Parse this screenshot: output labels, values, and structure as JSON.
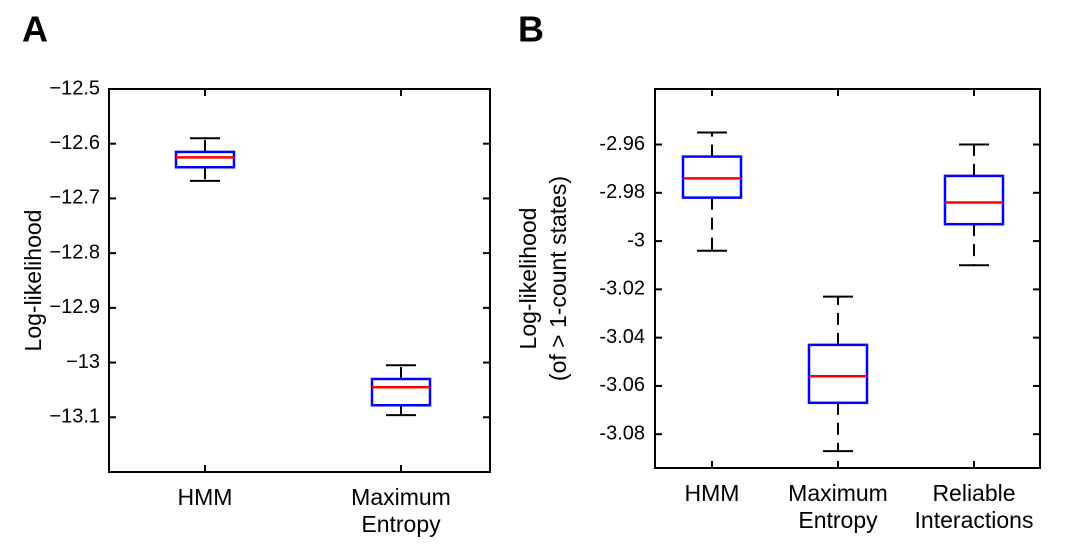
{
  "chart_data": [
    {
      "type": "box",
      "panel": "A",
      "ylabel": [
        "Log-likelihood"
      ],
      "categories": [
        "HMM",
        "Maximum Entropy"
      ],
      "boxes": [
        {
          "whislo": -12.668,
          "q1": -12.643,
          "med": -12.625,
          "q3": -12.615,
          "whishi": -12.59
        },
        {
          "whislo": -13.096,
          "q1": -13.078,
          "med": -13.045,
          "q3": -13.03,
          "whishi": -13.005
        }
      ],
      "box_color": "#0000ff",
      "median_color": "#ff0000",
      "whisker_color": "#000000",
      "ylim": [
        -13.2,
        -12.5
      ],
      "yticks": [
        {
          "value": -12.5,
          "label": "−12.5"
        },
        {
          "value": -12.6,
          "label": "−12.6"
        },
        {
          "value": -12.7,
          "label": "−12.7"
        },
        {
          "value": -12.8,
          "label": "−12.8"
        },
        {
          "value": -12.9,
          "label": "−12.9"
        },
        {
          "value": -13,
          "label": "−13"
        },
        {
          "value": -13.1,
          "label": "−13.1"
        }
      ]
    },
    {
      "type": "box",
      "panel": "B",
      "ylabel": [
        "Log-likelihood",
        "(of  > 1-count states)"
      ],
      "categories": [
        "HMM",
        "Maximum Entropy",
        "Reliable Interactions"
      ],
      "boxes": [
        {
          "whislo": -3.004,
          "q1": -2.982,
          "med": -2.974,
          "q3": -2.965,
          "whishi": -2.955
        },
        {
          "whislo": -3.087,
          "q1": -3.067,
          "med": -3.056,
          "q3": -3.043,
          "whishi": -3.023
        },
        {
          "whislo": -3.01,
          "q1": -2.993,
          "med": -2.984,
          "q3": -2.973,
          "whishi": -2.96
        }
      ],
      "box_color": "#0000ff",
      "median_color": "#ff0000",
      "whisker_color": "#000000",
      "ylim": [
        -3.094,
        -2.937
      ],
      "yticks": [
        -2.96,
        -2.98,
        -3,
        -3.02,
        -3.04,
        -3.06,
        -3.08
      ]
    }
  ]
}
